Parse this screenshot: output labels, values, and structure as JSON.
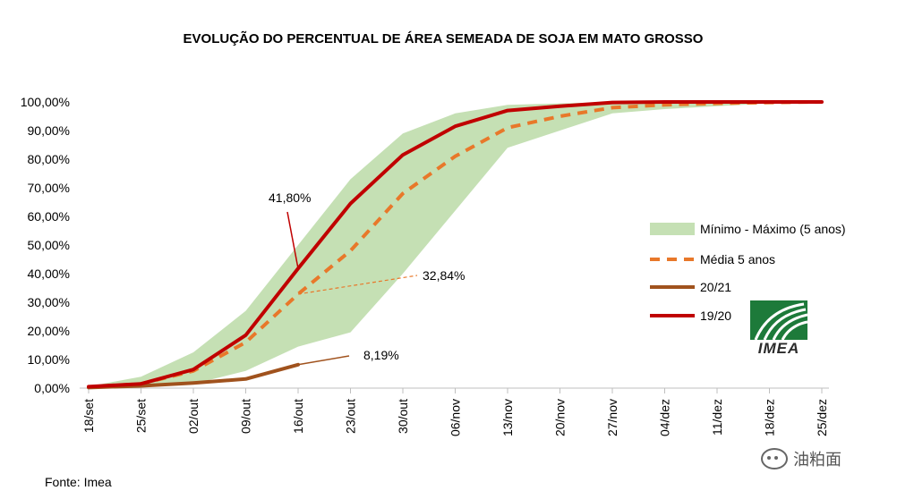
{
  "chart_data": {
    "type": "line",
    "title": "EVOLUÇÃO DO PERCENTUAL DE ÁREA SEMEADA DE SOJA EM MATO GROSSO",
    "categories": [
      "18/set",
      "25/set",
      "02/out",
      "09/out",
      "16/out",
      "23/out",
      "30/out",
      "06/nov",
      "13/nov",
      "20/nov",
      "27/nov",
      "04/dez",
      "11/dez",
      "18/dez",
      "25/dez"
    ],
    "ylim": [
      0,
      100
    ],
    "yticks": [
      "0,00%",
      "10,00%",
      "20,00%",
      "30,00%",
      "40,00%",
      "50,00%",
      "60,00%",
      "70,00%",
      "80,00%",
      "90,00%",
      "100,00%"
    ],
    "band": {
      "name": "Mínimo - Máximo (5 anos)",
      "color": "#c5e0b4",
      "min": [
        0.2,
        0.5,
        1.5,
        6.0,
        14.5,
        19.5,
        40.0,
        62.0,
        84.0,
        90.0,
        96.0,
        97.5,
        98.5,
        99.5,
        100.0
      ],
      "max": [
        0.6,
        4.0,
        12.5,
        27.0,
        50.0,
        73.0,
        89.0,
        96.0,
        99.0,
        99.5,
        100.0,
        100.0,
        100.0,
        100.0,
        100.0
      ]
    },
    "series": [
      {
        "name": "Média 5 anos",
        "color": "#e8782a",
        "style": "dashed",
        "values": [
          0.3,
          1.5,
          6.0,
          16.0,
          32.84,
          48.0,
          68.0,
          81.0,
          91.0,
          95.0,
          98.0,
          99.0,
          99.5,
          99.8,
          100.0
        ]
      },
      {
        "name": "20/21",
        "color": "#a0521d",
        "style": "solid",
        "values": [
          0.2,
          0.8,
          1.8,
          3.2,
          8.19,
          null,
          null,
          null,
          null,
          null,
          null,
          null,
          null,
          null,
          null
        ]
      },
      {
        "name": "19/20",
        "color": "#c00000",
        "style": "solid",
        "values": [
          0.5,
          1.5,
          6.5,
          18.5,
          41.8,
          64.5,
          81.5,
          91.5,
          97.0,
          98.5,
          99.8,
          100.0,
          100.0,
          100.0,
          100.0
        ]
      }
    ],
    "annotations": [
      {
        "text": "41,80%",
        "series": "19/20",
        "category": "16/out"
      },
      {
        "text": "32,84%",
        "series": "Média 5 anos",
        "category": "16/out"
      },
      {
        "text": "8,19%",
        "series": "20/21",
        "category": "16/out"
      }
    ],
    "legend_position": "right"
  },
  "logo": {
    "text": "IMEA"
  },
  "source": "Fonte: Imea",
  "watermark": "油粕面"
}
